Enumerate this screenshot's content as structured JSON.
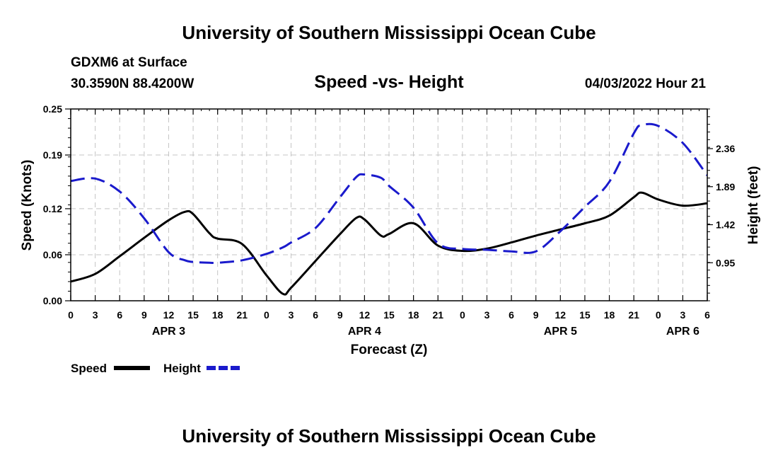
{
  "page": {
    "title_top": "University of Southern Mississippi Ocean Cube",
    "title_bottom": "University of Southern Mississippi Ocean Cube",
    "station": "GDXM6 at Surface",
    "coords": "30.3590N  88.4200W",
    "chart_title": "Speed -vs- Height",
    "datetime": "04/03/2022 Hour 21"
  },
  "chart_data": {
    "type": "line",
    "title": "Speed -vs- Height",
    "xlabel": "Forecast (Z)",
    "ylabel": "Speed (Knots)",
    "y2label": "Height (feet)",
    "x": [
      0,
      3,
      6,
      9,
      12,
      14,
      15,
      17,
      18,
      21,
      24,
      26,
      27,
      30,
      33,
      35,
      36,
      38,
      39,
      42,
      45,
      48,
      51,
      54,
      57,
      60,
      63,
      66,
      69,
      70,
      72,
      75,
      78
    ],
    "x_ticks": [
      0,
      3,
      6,
      9,
      12,
      15,
      18,
      21,
      24,
      27,
      30,
      33,
      36,
      39,
      42,
      45,
      48,
      51,
      54,
      57,
      60,
      63,
      66,
      69,
      72,
      75,
      78
    ],
    "x_tick_labels": [
      "0",
      "3",
      "6",
      "9",
      "12",
      "15",
      "18",
      "21",
      "0",
      "3",
      "6",
      "9",
      "12",
      "15",
      "18",
      "21",
      "0",
      "3",
      "6",
      "9",
      "12",
      "15",
      "18",
      "21",
      "0",
      "3",
      "6"
    ],
    "day_labels": [
      {
        "label": "APR 3",
        "x": 12
      },
      {
        "label": "APR 4",
        "x": 36
      },
      {
        "label": "APR 5",
        "x": 60
      },
      {
        "label": "APR 6",
        "x": 75
      }
    ],
    "ylim": [
      0,
      0.25
    ],
    "y_ticks": [
      0.0,
      0.06,
      0.12,
      0.19,
      0.25
    ],
    "y_tick_labels": [
      "0.00",
      "0.06",
      "0.12",
      "0.19",
      "0.25"
    ],
    "y2lim": [
      0.48,
      2.85
    ],
    "y2_ticks": [
      0.95,
      1.42,
      1.89,
      2.36
    ],
    "y2_tick_labels": [
      "0.95",
      "1.42",
      "1.89",
      "2.36"
    ],
    "series": [
      {
        "name": "Speed",
        "axis": "left",
        "color": "#000000",
        "dash": "solid",
        "values": [
          0.025,
          0.035,
          0.058,
          0.082,
          0.105,
          0.116,
          0.113,
          0.088,
          0.081,
          0.074,
          0.033,
          0.009,
          0.017,
          0.052,
          0.087,
          0.108,
          0.106,
          0.085,
          0.087,
          0.101,
          0.072,
          0.065,
          0.068,
          0.076,
          0.085,
          0.093,
          0.101,
          0.111,
          0.135,
          0.141,
          0.132,
          0.124,
          0.127
        ]
      },
      {
        "name": "Height",
        "axis": "right",
        "color": "#1a1acc",
        "dash": "dashed",
        "values": [
          1.96,
          1.99,
          1.83,
          1.5,
          1.08,
          0.98,
          0.96,
          0.95,
          0.95,
          0.98,
          1.06,
          1.14,
          1.2,
          1.38,
          1.76,
          2.01,
          2.04,
          2.0,
          1.9,
          1.63,
          1.19,
          1.12,
          1.11,
          1.09,
          1.09,
          1.34,
          1.64,
          1.95,
          2.55,
          2.65,
          2.64,
          2.43,
          2.03
        ]
      }
    ],
    "legend": [
      "Speed",
      "Height"
    ],
    "grid": true,
    "legend_position": "bottom-left"
  }
}
